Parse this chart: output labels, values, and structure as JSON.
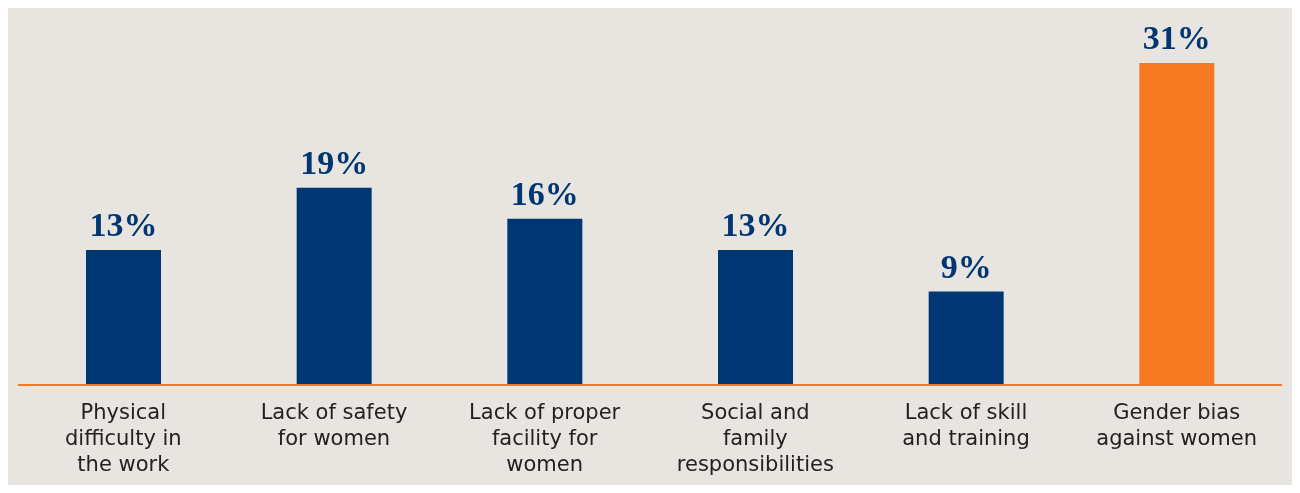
{
  "chart_data": {
    "type": "bar",
    "categories": [
      "Physical difficulty in the work",
      "Lack of safety for women",
      "Lack of proper facility for women",
      "Social and family responsibilities",
      "Lack of skill and training",
      "Gender bias against women"
    ],
    "values": [
      13,
      19,
      16,
      13,
      9,
      31
    ],
    "colors": [
      "#003671",
      "#003671",
      "#003671",
      "#003671",
      "#003671",
      "#f47920"
    ],
    "value_labels": [
      "13%",
      "19%",
      "16%",
      "13%",
      "9%",
      "31%"
    ],
    "grid": false,
    "legend": false
  }
}
